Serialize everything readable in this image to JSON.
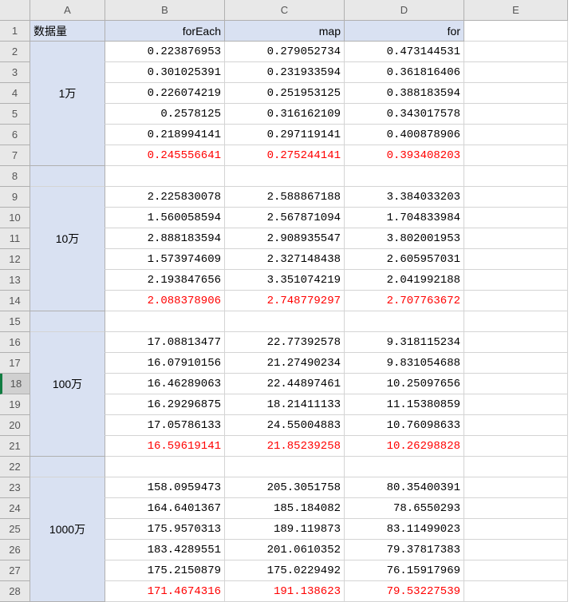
{
  "columns": [
    "A",
    "B",
    "C",
    "D",
    "E"
  ],
  "rowCount": 28,
  "selectedRow": 18,
  "headers": {
    "A": "数据量",
    "B": "forEach",
    "C": "map",
    "D": "for"
  },
  "groups": [
    {
      "label": "1万",
      "startRow": 2,
      "endRow": 7,
      "labelRow": 4,
      "rows": [
        {
          "B": "0.223876953",
          "C": "0.279052734",
          "D": "0.473144531",
          "red": false
        },
        {
          "B": "0.301025391",
          "C": "0.231933594",
          "D": "0.361816406",
          "red": false
        },
        {
          "B": "0.226074219",
          "C": "0.251953125",
          "D": "0.388183594",
          "red": false
        },
        {
          "B": "0.2578125",
          "C": "0.316162109",
          "D": "0.343017578",
          "red": false
        },
        {
          "B": "0.218994141",
          "C": "0.297119141",
          "D": "0.400878906",
          "red": false
        },
        {
          "B": "0.245556641",
          "C": "0.275244141",
          "D": "0.393408203",
          "red": true
        }
      ]
    },
    {
      "label": "10万",
      "startRow": 9,
      "endRow": 14,
      "labelRow": 11,
      "rows": [
        {
          "B": "2.225830078",
          "C": "2.588867188",
          "D": "3.384033203",
          "red": false
        },
        {
          "B": "1.560058594",
          "C": "2.567871094",
          "D": "1.704833984",
          "red": false
        },
        {
          "B": "2.888183594",
          "C": "2.908935547",
          "D": "3.802001953",
          "red": false
        },
        {
          "B": "1.573974609",
          "C": "2.327148438",
          "D": "2.605957031",
          "red": false
        },
        {
          "B": "2.193847656",
          "C": "3.351074219",
          "D": "2.041992188",
          "red": false
        },
        {
          "B": "2.088378906",
          "C": "2.748779297",
          "D": "2.707763672",
          "red": true
        }
      ]
    },
    {
      "label": "100万",
      "startRow": 16,
      "endRow": 21,
      "labelRow": 18,
      "rows": [
        {
          "B": "17.08813477",
          "C": "22.77392578",
          "D": "9.318115234",
          "red": false
        },
        {
          "B": "16.07910156",
          "C": "21.27490234",
          "D": "9.831054688",
          "red": false
        },
        {
          "B": "16.46289063",
          "C": "22.44897461",
          "D": "10.25097656",
          "red": false
        },
        {
          "B": "16.29296875",
          "C": "18.21411133",
          "D": "11.15380859",
          "red": false
        },
        {
          "B": "17.05786133",
          "C": "24.55004883",
          "D": "10.76098633",
          "red": false
        },
        {
          "B": "16.59619141",
          "C": "21.85239258",
          "D": "10.26298828",
          "red": true
        }
      ]
    },
    {
      "label": "1000万",
      "startRow": 23,
      "endRow": 28,
      "labelRow": 25,
      "rows": [
        {
          "B": "158.0959473",
          "C": "205.3051758",
          "D": "80.35400391",
          "red": false
        },
        {
          "B": "164.6401367",
          "C": "185.184082",
          "D": "78.6550293",
          "red": false
        },
        {
          "B": "175.9570313",
          "C": "189.119873",
          "D": "83.11499023",
          "red": false
        },
        {
          "B": "183.4289551",
          "C": "201.0610352",
          "D": "79.37817383",
          "red": false
        },
        {
          "B": "175.2150879",
          "C": "175.0229492",
          "D": "76.15917969",
          "red": false
        },
        {
          "B": "171.4674316",
          "C": "191.138623",
          "D": "79.53227539",
          "red": true
        }
      ]
    }
  ],
  "emptyRows": [
    8,
    15,
    22
  ]
}
